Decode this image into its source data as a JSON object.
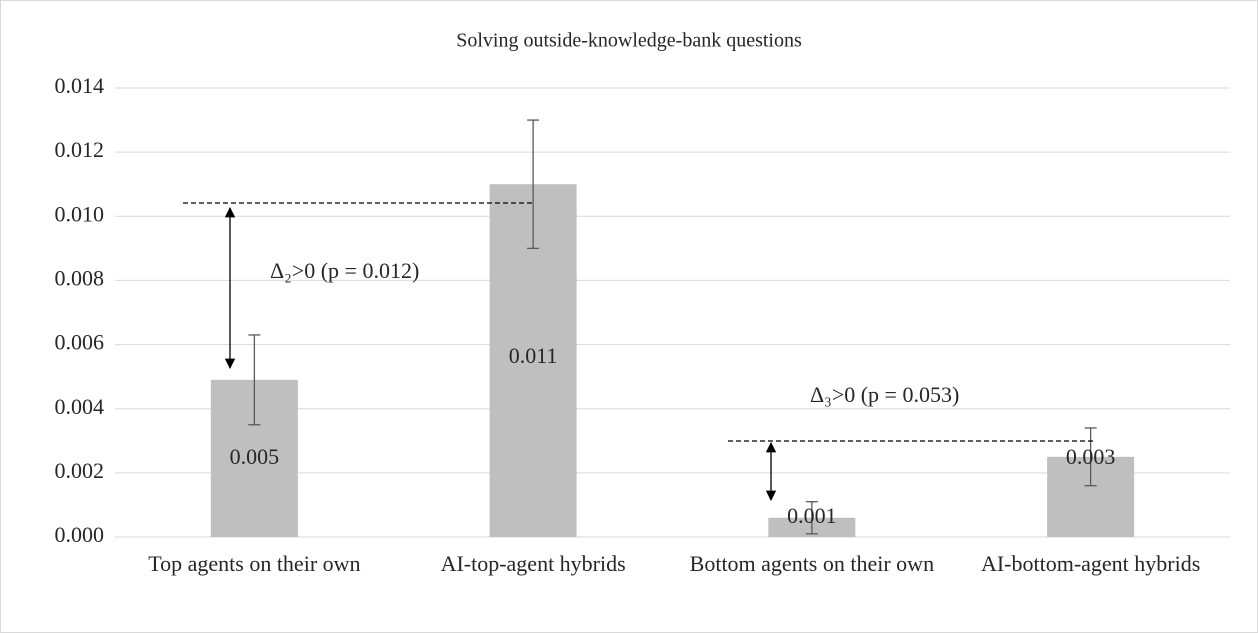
{
  "chart_data": {
    "type": "bar",
    "title": "Solving outside-knowledge-bank questions",
    "categories": [
      "Top agents on their own",
      "AI-top-agent hybrids",
      "Bottom agents on their own",
      "AI-bottom-agent hybrids"
    ],
    "values": [
      0.0049,
      0.011,
      0.0006,
      0.0025
    ],
    "value_labels": [
      "0.005",
      "0.011",
      "0.001",
      "0.003"
    ],
    "errors": [
      0.0014,
      0.002,
      0.0005,
      0.0009
    ],
    "color": "#bfbfbf",
    "ylim": [
      0,
      0.014
    ],
    "yticks": [
      {
        "value": 0,
        "label": "0.000"
      },
      {
        "value": 0.002,
        "label": "0.002"
      },
      {
        "value": 0.004,
        "label": "0.004"
      },
      {
        "value": 0.006,
        "label": "0.006"
      },
      {
        "value": 0.008,
        "label": "0.008"
      },
      {
        "value": 0.01,
        "label": "0.010"
      },
      {
        "value": 0.012,
        "label": "0.012"
      },
      {
        "value": 0.014,
        "label": "0.014"
      }
    ],
    "grid": true,
    "annotations": [
      "Δ₂>0 (p = 0.012)",
      "Δ₃>0 (p = 0.053)"
    ]
  }
}
